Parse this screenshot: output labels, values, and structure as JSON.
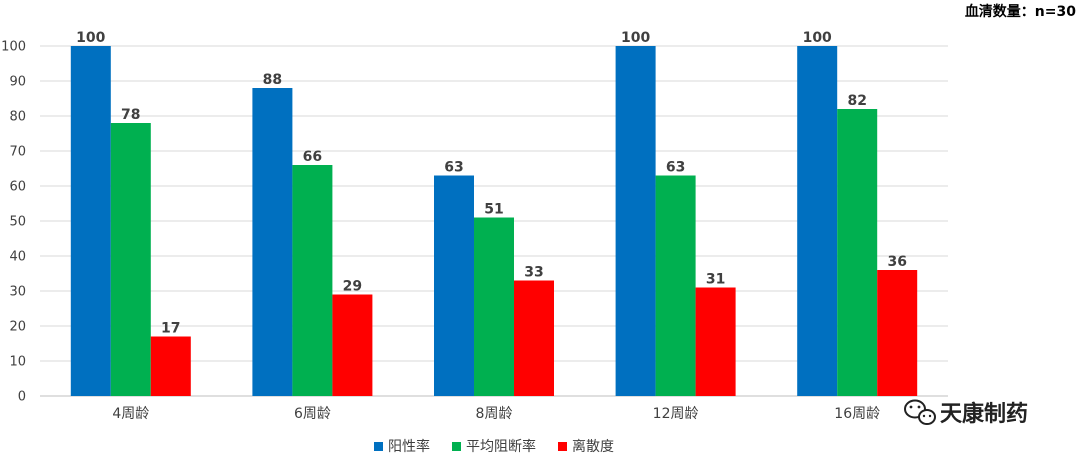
{
  "chart_data": {
    "type": "bar",
    "categories": [
      "4周龄",
      "6周龄",
      "8周龄",
      "12周龄",
      "16周龄"
    ],
    "series": [
      {
        "name": "阳性率",
        "color": "#0070C0",
        "values": [
          100,
          88,
          63,
          100,
          100
        ]
      },
      {
        "name": "平均阻断率",
        "color": "#00B050",
        "values": [
          78,
          66,
          51,
          63,
          82
        ]
      },
      {
        "name": "离散度",
        "color": "#FF0000",
        "values": [
          17,
          29,
          33,
          31,
          36
        ]
      }
    ],
    "ylim": [
      0,
      100
    ],
    "yticks": [
      0,
      10,
      20,
      30,
      40,
      50,
      60,
      70,
      80,
      90,
      100
    ],
    "grid": true,
    "legend_position": "bottom-center",
    "annotation": "血清数量：n=30"
  },
  "watermark": {
    "icon": "wechat-icon",
    "text": "天康制药"
  }
}
